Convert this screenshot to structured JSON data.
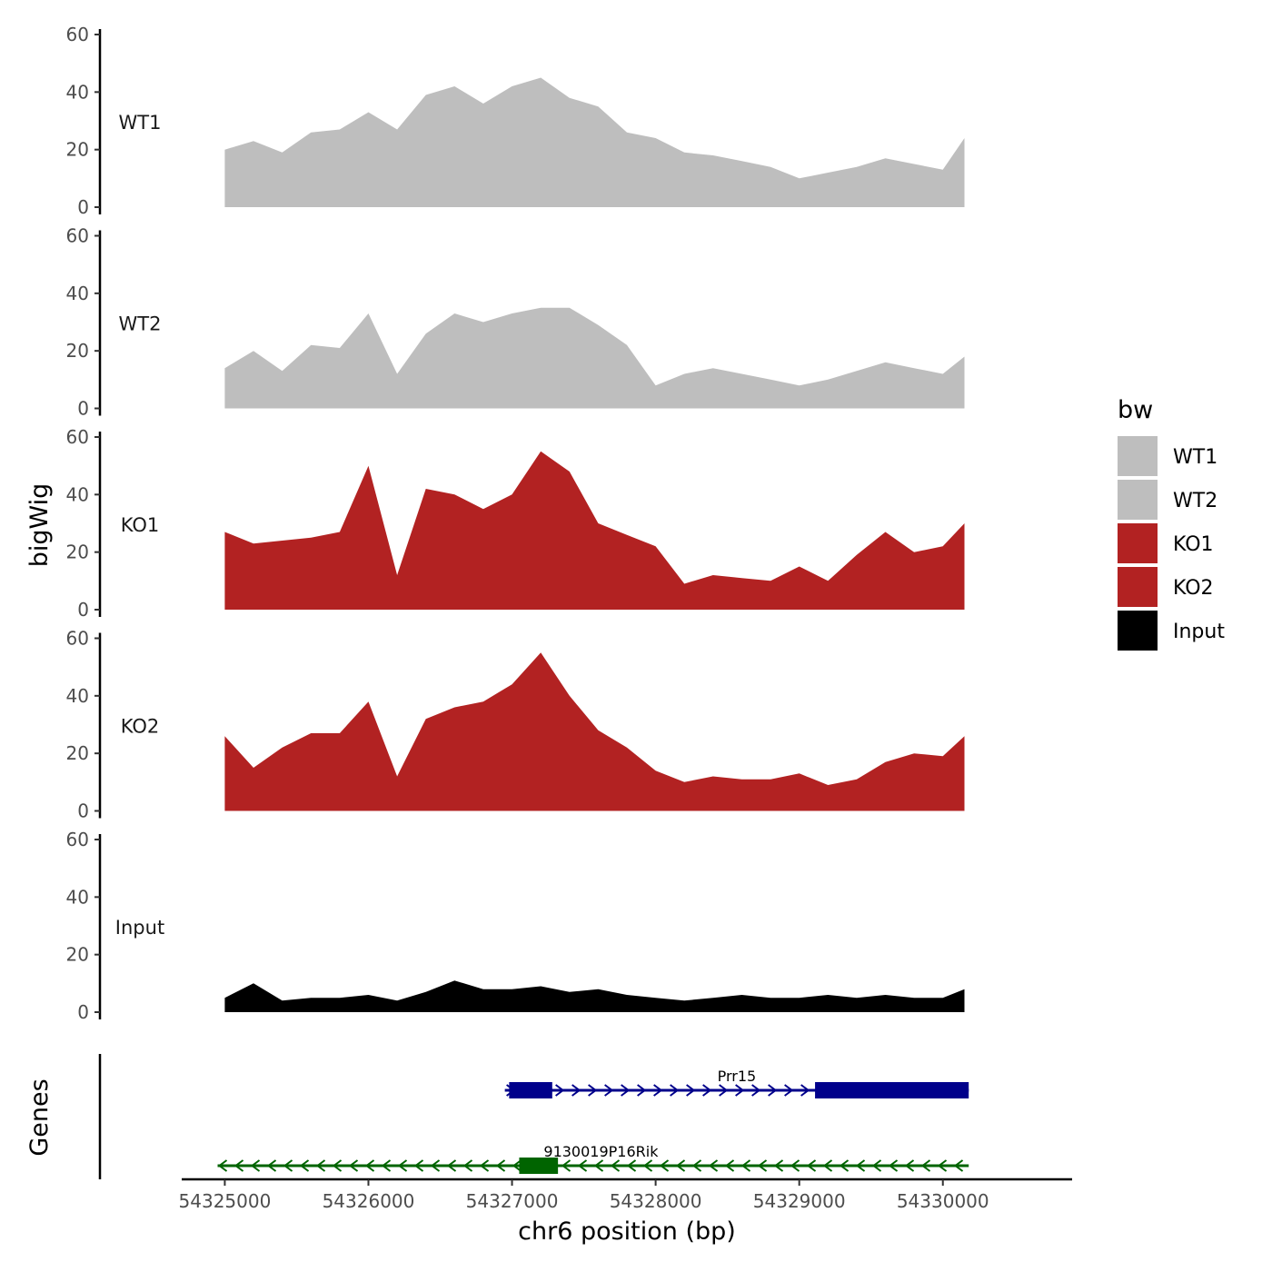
{
  "chart_data": {
    "type": "area",
    "y_label": "bigWig",
    "x_label": "chr6 position (bp)",
    "genes_label": "Genes",
    "ylim": [
      0,
      60
    ],
    "y_ticks": [
      "0",
      "20",
      "40",
      "60"
    ],
    "x_range": [
      54324700,
      54330900
    ],
    "x_ticks": [
      {
        "value": 54325000,
        "label": "54325000"
      },
      {
        "value": 54326000,
        "label": "54326000"
      },
      {
        "value": 54327000,
        "label": "54327000"
      },
      {
        "value": 54328000,
        "label": "54328000"
      },
      {
        "value": 54329000,
        "label": "54329000"
      },
      {
        "value": 54330000,
        "label": "54330000"
      }
    ],
    "x": [
      54325000,
      54325200,
      54325400,
      54325600,
      54325800,
      54326000,
      54326200,
      54326400,
      54326600,
      54326800,
      54327000,
      54327200,
      54327400,
      54327600,
      54327800,
      54328000,
      54328200,
      54328400,
      54328600,
      54328800,
      54329000,
      54329200,
      54329400,
      54329600,
      54329800,
      54330000,
      54330150
    ],
    "series": [
      {
        "name": "WT1",
        "color": "#bebebe",
        "values": [
          20,
          23,
          19,
          26,
          27,
          33,
          27,
          39,
          42,
          36,
          42,
          45,
          38,
          35,
          26,
          24,
          19,
          18,
          16,
          14,
          10,
          12,
          14,
          17,
          15,
          13,
          24
        ]
      },
      {
        "name": "WT2",
        "color": "#bebebe",
        "values": [
          14,
          20,
          13,
          22,
          21,
          33,
          12,
          26,
          33,
          30,
          33,
          35,
          35,
          29,
          22,
          8,
          12,
          14,
          12,
          10,
          8,
          10,
          13,
          16,
          14,
          12,
          18
        ]
      },
      {
        "name": "KO1",
        "color": "#b22222",
        "values": [
          27,
          23,
          24,
          25,
          27,
          50,
          12,
          42,
          40,
          35,
          40,
          55,
          48,
          30,
          26,
          22,
          9,
          12,
          11,
          10,
          15,
          10,
          19,
          27,
          20,
          22,
          30
        ]
      },
      {
        "name": "KO2",
        "color": "#b22222",
        "values": [
          26,
          15,
          22,
          27,
          27,
          38,
          12,
          32,
          36,
          38,
          44,
          55,
          40,
          28,
          22,
          14,
          10,
          12,
          11,
          11,
          13,
          9,
          11,
          17,
          20,
          19,
          26
        ]
      },
      {
        "name": "Input",
        "color": "#000000",
        "values": [
          5,
          10,
          4,
          5,
          5,
          6,
          4,
          7,
          11,
          8,
          8,
          9,
          7,
          8,
          6,
          5,
          4,
          5,
          6,
          5,
          5,
          6,
          5,
          6,
          5,
          5,
          8
        ]
      }
    ],
    "genes": [
      {
        "name": "Prr15",
        "strand": "+",
        "color": "#00008b",
        "start": 54326950,
        "end": 54330180,
        "exons": [
          [
            54326980,
            54327280
          ],
          [
            54329110,
            54330180
          ]
        ],
        "row": 0
      },
      {
        "name": "9130019P16Rik",
        "strand": "-",
        "color": "#006400",
        "start": 54324950,
        "end": 54330180,
        "exons": [
          [
            54327050,
            54327320
          ]
        ],
        "row": 1
      }
    ],
    "legend": {
      "title": "bw",
      "position": "right",
      "items": [
        {
          "label": "WT1",
          "color": "#bebebe"
        },
        {
          "label": "WT2",
          "color": "#bebebe"
        },
        {
          "label": "KO1",
          "color": "#b22222"
        },
        {
          "label": "KO2",
          "color": "#b22222"
        },
        {
          "label": "Input",
          "color": "#000000"
        }
      ]
    }
  }
}
